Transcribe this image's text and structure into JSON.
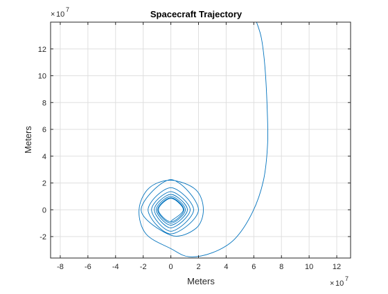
{
  "chart_data": {
    "type": "line",
    "title": "Spacecraft Trajectory",
    "xlabel": "Meters",
    "ylabel": "Meters",
    "x_multiplier": "10",
    "x_multiplier_exp": "7",
    "y_multiplier": "10",
    "y_multiplier_exp": "7",
    "xlim": [
      -8.7,
      13.0
    ],
    "ylim": [
      -3.6,
      14.0
    ],
    "x_ticks": [
      -8,
      -6,
      -4,
      -2,
      0,
      2,
      4,
      6,
      8,
      10,
      12
    ],
    "y_ticks": [
      -2,
      0,
      2,
      4,
      6,
      8,
      10,
      12
    ],
    "grid": true,
    "line_color": "#0072BD",
    "series": [
      {
        "x": [
          0.0,
          0.9,
          0.0,
          -0.9,
          0.0,
          0.95,
          0.0,
          -0.95,
          0.0,
          1.05,
          0.0,
          -1.05,
          0.0,
          1.2,
          0.0,
          -1.2,
          0.0,
          1.4,
          0.0,
          -1.4,
          0.0,
          1.65,
          0.0,
          -1.65,
          0.0,
          2.0,
          0.0,
          -2.15,
          0.0,
          1.8,
          2.35,
          1.8,
          0.0,
          -1.6,
          -2.3,
          -1.8,
          0.0,
          1.3,
          3.0,
          4.6,
          5.9,
          6.7,
          7.0,
          6.95,
          6.8,
          6.55,
          6.2
        ],
        "y": [
          -0.85,
          0.0,
          0.85,
          0.0,
          -0.9,
          0.0,
          0.9,
          0.0,
          -1.0,
          0.0,
          1.0,
          0.0,
          -1.15,
          0.0,
          1.15,
          0.0,
          -1.35,
          0.0,
          1.35,
          0.0,
          -1.6,
          0.0,
          1.65,
          0.0,
          -1.8,
          0.0,
          2.25,
          0.0,
          -1.9,
          -1.4,
          0.0,
          1.5,
          2.2,
          1.6,
          0.0,
          -1.8,
          -2.9,
          -3.5,
          -3.2,
          -2.2,
          -0.2,
          2.2,
          5.0,
          8.0,
          10.7,
          12.8,
          14.0
        ]
      }
    ]
  }
}
